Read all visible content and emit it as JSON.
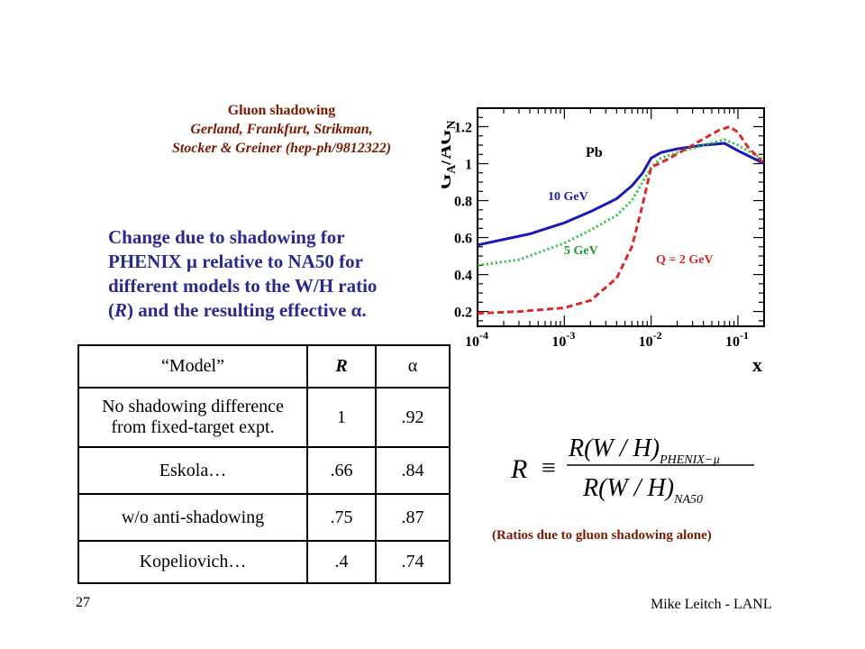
{
  "citation": {
    "line1": "Gluon shadowing",
    "line2": "Gerland, Frankfurt, Strikman,",
    "line3": "Stocker & Greiner (hep-ph/9812322)"
  },
  "description": {
    "line1": "Change due to shadowing for",
    "line2": "PHENIX µ relative to NA50 for",
    "line3": "different models to the W/H ratio",
    "line4_pre": "(",
    "line4_R": "R",
    "line4_post": ") and the resulting effective α."
  },
  "table": {
    "headers": [
      "“Model”",
      "R",
      "α"
    ],
    "rows": [
      {
        "model_line1": "No shadowing difference",
        "model_line2": "from fixed-target expt.",
        "R": "1",
        "alpha": ".92"
      },
      {
        "model_line1": "Eskola…",
        "model_line2": "",
        "R": ".66",
        "alpha": ".84"
      },
      {
        "model_line1": "w/o anti-shadowing",
        "model_line2": "",
        "R": ".75",
        "alpha": ".87"
      },
      {
        "model_line1": "Kopeliovich…",
        "model_line2": "",
        "R": ".4",
        "alpha": ".74"
      }
    ]
  },
  "chart_data": {
    "type": "line",
    "ylabel": "GA/AGN",
    "ylabel_parts": {
      "G1": "G",
      "sub1": "A",
      "mid": "/AG",
      "sub2": "N"
    },
    "xlabel": "x",
    "xscale": "log",
    "xlim": [
      0.0001,
      0.2
    ],
    "ylim": [
      0.12,
      1.3
    ],
    "x_ticks": [
      {
        "base": "10",
        "exp": "-4"
      },
      {
        "base": "10",
        "exp": "-3"
      },
      {
        "base": "10",
        "exp": "-2"
      },
      {
        "base": "10",
        "exp": "-1"
      }
    ],
    "y_ticks": [
      "0.2",
      "0.4",
      "0.6",
      "0.8",
      "1",
      "1.2"
    ],
    "panel_label": "Pb",
    "series": [
      {
        "name": "10 GeV",
        "color": "#1a1ab4",
        "style": "solid",
        "points": [
          [
            0.0001,
            0.56
          ],
          [
            0.0002,
            0.59
          ],
          [
            0.0004,
            0.62
          ],
          [
            0.001,
            0.68
          ],
          [
            0.002,
            0.74
          ],
          [
            0.004,
            0.81
          ],
          [
            0.006,
            0.88
          ],
          [
            0.008,
            0.95
          ],
          [
            0.01,
            1.03
          ],
          [
            0.013,
            1.06
          ],
          [
            0.02,
            1.08
          ],
          [
            0.04,
            1.1
          ],
          [
            0.07,
            1.11
          ],
          [
            0.1,
            1.07
          ],
          [
            0.2,
            1.0
          ]
        ]
      },
      {
        "name": "5 GeV",
        "color": "#22c83c",
        "style": "dotted",
        "points": [
          [
            0.0001,
            0.45
          ],
          [
            0.0003,
            0.48
          ],
          [
            0.001,
            0.57
          ],
          [
            0.002,
            0.64
          ],
          [
            0.004,
            0.72
          ],
          [
            0.006,
            0.8
          ],
          [
            0.008,
            0.9
          ],
          [
            0.01,
            0.98
          ],
          [
            0.013,
            1.03
          ],
          [
            0.02,
            1.06
          ],
          [
            0.04,
            1.1
          ],
          [
            0.07,
            1.13
          ],
          [
            0.1,
            1.1
          ],
          [
            0.2,
            1.02
          ]
        ]
      },
      {
        "name": "Q = 2 GeV",
        "color": "#dc2828",
        "style": "dashed",
        "points": [
          [
            0.0001,
            0.19
          ],
          [
            0.0003,
            0.2
          ],
          [
            0.001,
            0.22
          ],
          [
            0.002,
            0.26
          ],
          [
            0.004,
            0.38
          ],
          [
            0.006,
            0.55
          ],
          [
            0.008,
            0.78
          ],
          [
            0.01,
            0.98
          ],
          [
            0.015,
            1.02
          ],
          [
            0.03,
            1.1
          ],
          [
            0.06,
            1.18
          ],
          [
            0.08,
            1.2
          ],
          [
            0.1,
            1.17
          ],
          [
            0.13,
            1.09
          ],
          [
            0.2,
            1.0
          ]
        ]
      }
    ]
  },
  "formula": {
    "lhs": "R",
    "equiv": "≡",
    "num": "R(W / H)",
    "num_sub": "PHENIX−µ",
    "den": "R(W / H)",
    "den_sub": "NA50"
  },
  "caption": "(Ratios due to gluon shadowing alone)",
  "footer": {
    "page": "27",
    "author": "Mike Leitch - LANL"
  }
}
